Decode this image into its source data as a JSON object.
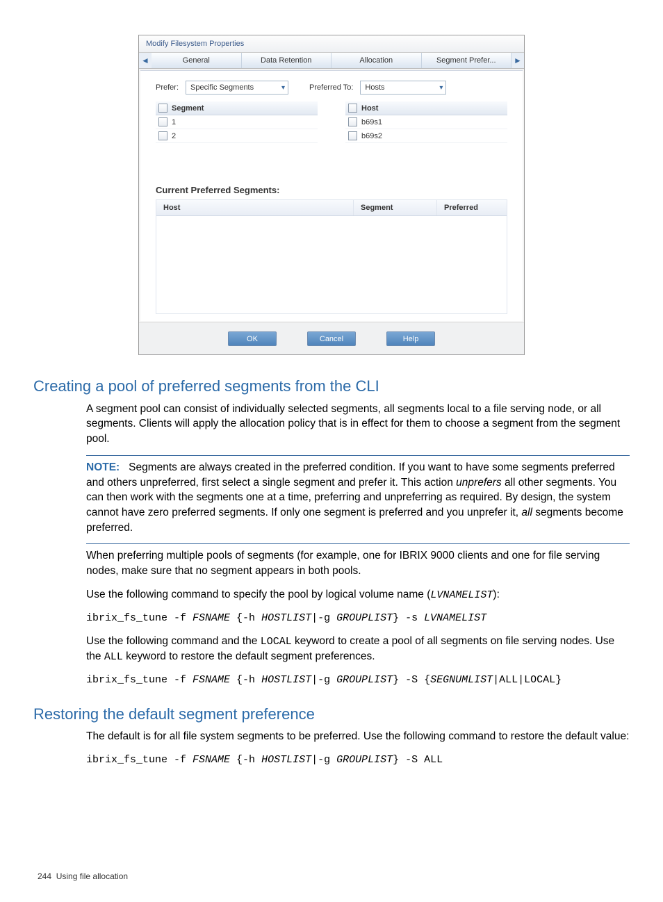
{
  "dialog": {
    "title": "Modify Filesystem Properties",
    "tabs": {
      "prev": "⇦",
      "next": "⇨",
      "t0": "General",
      "t1": "Data Retention",
      "t2": "Allocation",
      "t3": "Segment Prefer..."
    },
    "prefer": {
      "label": "Prefer:",
      "value": "Specific Segments"
    },
    "preferredTo": {
      "label": "Preferred To:",
      "value": "Hosts"
    },
    "segList": {
      "header": "Segment",
      "r0": "1",
      "r1": "2"
    },
    "hostList": {
      "header": "Host",
      "r0": "b69s1",
      "r1": "b69s2"
    },
    "cps": {
      "title": "Current Preferred Segments:",
      "colHost": "Host",
      "colSeg": "Segment",
      "colPref": "Preferred"
    },
    "buttons": {
      "ok": "OK",
      "cancel": "Cancel",
      "help": "Help"
    }
  },
  "doc": {
    "h1": "Creating a pool of preferred segments from the CLI",
    "p1": "A segment pool can consist of individually selected segments, all segments local to a file serving node, or all segments. Clients will apply the allocation policy that is in effect for them to choose a segment from the segment pool.",
    "note_label": "NOTE:",
    "note_a": "Segments are always created in the preferred condition. If you want to have some segments preferred and others unpreferred, first select a single segment and prefer it. This action ",
    "note_i": "unprefers",
    "note_b": " all other segments. You can then work with the segments one at a time, preferring and unpreferring as required. By design, the system cannot have zero preferred segments. If only one segment is preferred and you unprefer it, ",
    "note_i2": "all",
    "note_c": " segments become preferred.",
    "p2": "When preferring multiple pools of segments (for example, one for IBRIX 9000 clients and one for file serving nodes, make sure that no segment appears in both pools.",
    "p3a": "Use the following command to specify the pool by logical volume name (",
    "p3_code": "LVNAMELIST",
    "p3b": "):",
    "cmd1_a": "ibrix_fs_tune -f ",
    "cmd1_b": "FSNAME",
    "cmd1_c": " {-h ",
    "cmd1_d": "HOSTLIST",
    "cmd1_e": "|-g ",
    "cmd1_f": "GROUPLIST",
    "cmd1_g": "} -s ",
    "cmd1_h": "LVNAMELIST",
    "p4a": "Use the following command and the ",
    "p4_code1": "LOCAL",
    "p4b": " keyword to create a pool of all segments on file serving nodes. Use the ",
    "p4_code2": "ALL",
    "p4c": " keyword to restore the default segment preferences.",
    "cmd2_a": "ibrix_fs_tune -f ",
    "cmd2_b": "FSNAME",
    "cmd2_c": " {-h ",
    "cmd2_d": "HOSTLIST",
    "cmd2_e": "|-g ",
    "cmd2_f": "GROUPLIST",
    "cmd2_g": "} -S {",
    "cmd2_h": "SEGNUMLIST",
    "cmd2_i": "|ALL|LOCAL}",
    "h2": "Restoring the default segment preference",
    "r_p1": "The default is for all file system segments to be preferred. Use the following command to restore the default value:",
    "cmd3_a": "ibrix_fs_tune -f ",
    "cmd3_b": "FSNAME",
    "cmd3_c": " {-h ",
    "cmd3_d": "HOSTLIST",
    "cmd3_e": "|-g ",
    "cmd3_f": "GROUPLIST",
    "cmd3_g": "} -S ALL"
  },
  "footer": {
    "page": "244",
    "chapter": "Using file allocation"
  }
}
